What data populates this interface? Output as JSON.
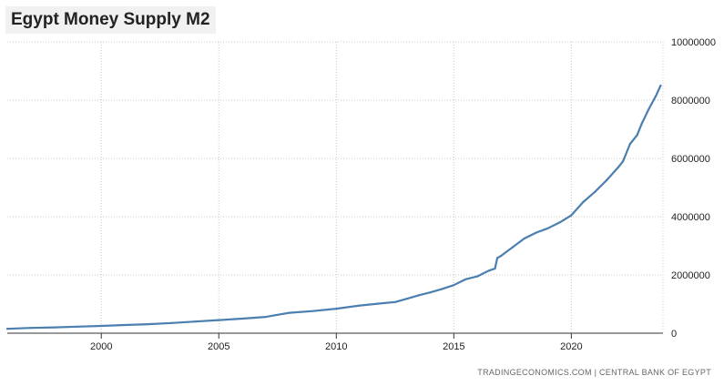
{
  "chart_data": {
    "type": "line",
    "title": "Egypt Money Supply M2",
    "xlabel": "",
    "ylabel": "",
    "xlim": [
      1996,
      2023.9
    ],
    "ylim": [
      0,
      10000000
    ],
    "x_ticks": [
      2000,
      2005,
      2010,
      2015,
      2020
    ],
    "y_ticks": [
      0,
      2000000,
      4000000,
      6000000,
      8000000,
      10000000
    ],
    "x_tick_labels": [
      "2000",
      "2005",
      "2010",
      "2015",
      "2020"
    ],
    "y_tick_labels": [
      "0",
      "2000000",
      "4000000",
      "6000000",
      "8000000",
      "10000000"
    ],
    "grid": true,
    "series": [
      {
        "name": "Egypt Money Supply M2",
        "color": "#4a7fb0",
        "x": [
          1996,
          1997,
          1998,
          1999,
          2000,
          2001,
          2002,
          2003,
          2004,
          2005,
          2006,
          2007,
          2008,
          2009,
          2010,
          2011,
          2012,
          2012.5,
          2013,
          2013.5,
          2014,
          2014.5,
          2015,
          2015.5,
          2016,
          2016.5,
          2016.75,
          2016.85,
          2017,
          2017.5,
          2018,
          2018.5,
          2019,
          2019.5,
          2020,
          2020.5,
          2021,
          2021.5,
          2022,
          2022.2,
          2022.5,
          2022.8,
          2023,
          2023.3,
          2023.6,
          2023.8
        ],
        "y": [
          150000,
          180000,
          200000,
          225000,
          250000,
          280000,
          310000,
          350000,
          400000,
          450000,
          500000,
          560000,
          700000,
          760000,
          840000,
          950000,
          1030000,
          1070000,
          1180000,
          1300000,
          1400000,
          1520000,
          1650000,
          1850000,
          1950000,
          2150000,
          2220000,
          2580000,
          2650000,
          2950000,
          3250000,
          3450000,
          3600000,
          3800000,
          4050000,
          4500000,
          4850000,
          5250000,
          5700000,
          5900000,
          6500000,
          6800000,
          7200000,
          7700000,
          8150000,
          8500000
        ]
      }
    ]
  },
  "source": {
    "text": "TRADINGECONOMICS.COM | CENTRAL BANK OF EGYPT"
  }
}
